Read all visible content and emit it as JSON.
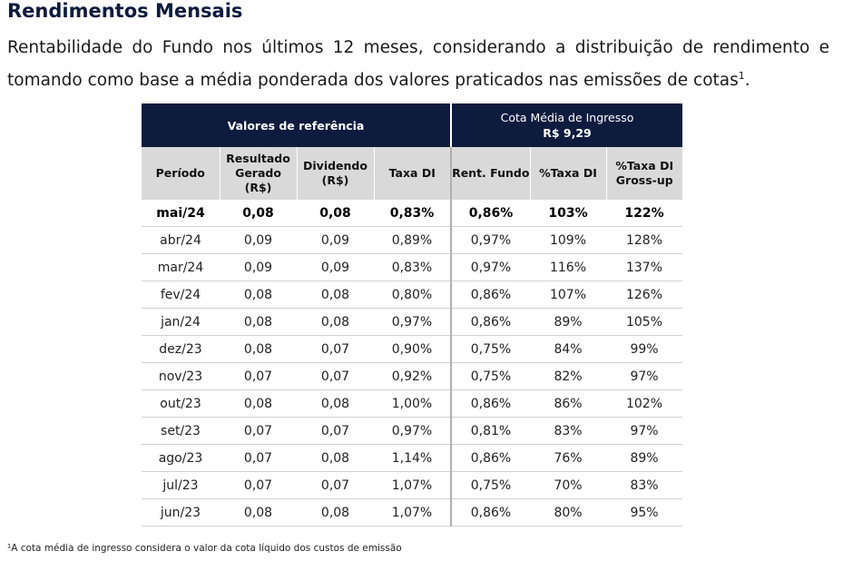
{
  "title": "Rendimentos Mensais",
  "intro": "Rentabilidade do Fundo nos últimos 12 meses, considerando a distribuição de rendimento e tomando como base a média ponderada dos valores praticados nas emissões de cotas",
  "intro_sup": "1",
  "intro_end": ".",
  "group_headers": {
    "ref": "Valores de referência",
    "cota": "Cota Média de Ingresso",
    "cota_value": "R$ 9,29"
  },
  "columns": [
    "Período",
    "Resultado Gerado (R$)",
    "Dividendo (R$)",
    "Taxa DI",
    "Rent. Fundo",
    "%Taxa DI",
    "%Taxa DI Gross-up"
  ],
  "rows": [
    [
      "mai/24",
      "0,08",
      "0,08",
      "0,83%",
      "0,86%",
      "103%",
      "122%"
    ],
    [
      "abr/24",
      "0,09",
      "0,09",
      "0,89%",
      "0,97%",
      "109%",
      "128%"
    ],
    [
      "mar/24",
      "0,09",
      "0,09",
      "0,83%",
      "0,97%",
      "116%",
      "137%"
    ],
    [
      "fev/24",
      "0,08",
      "0,08",
      "0,80%",
      "0,86%",
      "107%",
      "126%"
    ],
    [
      "jan/24",
      "0,08",
      "0,08",
      "0,97%",
      "0,86%",
      "89%",
      "105%"
    ],
    [
      "dez/23",
      "0,08",
      "0,07",
      "0,90%",
      "0,75%",
      "84%",
      "99%"
    ],
    [
      "nov/23",
      "0,07",
      "0,07",
      "0,92%",
      "0,75%",
      "82%",
      "97%"
    ],
    [
      "out/23",
      "0,08",
      "0,08",
      "1,00%",
      "0,86%",
      "86%",
      "102%"
    ],
    [
      "set/23",
      "0,07",
      "0,07",
      "0,97%",
      "0,81%",
      "83%",
      "97%"
    ],
    [
      "ago/23",
      "0,07",
      "0,08",
      "1,14%",
      "0,86%",
      "76%",
      "89%"
    ],
    [
      "jul/23",
      "0,07",
      "0,07",
      "1,07%",
      "0,75%",
      "70%",
      "83%"
    ],
    [
      "jun/23",
      "0,08",
      "0,08",
      "1,07%",
      "0,86%",
      "80%",
      "95%"
    ]
  ],
  "footnote": "¹A cota média de ingresso considera o valor da cota líquido dos custos de emissão",
  "colors": {
    "header_navy": "#0d1b3e",
    "subheader_gray": "#d9d9d9"
  }
}
